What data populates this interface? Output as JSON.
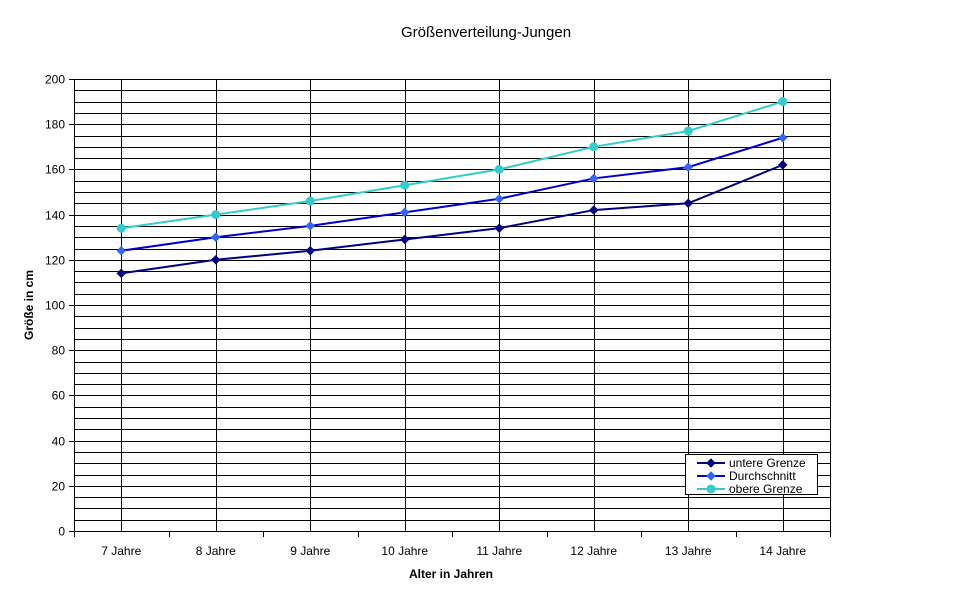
{
  "chart_data": {
    "type": "line",
    "title": "Größenverteilung-Jungen",
    "xlabel": "Alter in Jahren",
    "ylabel": "Größe in cm",
    "categories": [
      "7 Jahre",
      "8 Jahre",
      "9 Jahre",
      "10 Jahre",
      "11 Jahre",
      "12 Jahre",
      "13 Jahre",
      "14 Jahre"
    ],
    "ylim": [
      0,
      200
    ],
    "y_major_step": 20,
    "y_minor_step": 5,
    "y_ticks": [
      "0",
      "20",
      "40",
      "60",
      "80",
      "100",
      "120",
      "140",
      "160",
      "180",
      "200"
    ],
    "grid": true,
    "legend_position": "bottom-right",
    "series": [
      {
        "name": "untere Grenze",
        "values": [
          114,
          120,
          124,
          129,
          134,
          142,
          145,
          162
        ],
        "color": "#000080",
        "marker": "diamond"
      },
      {
        "name": "Durchschnitt",
        "values": [
          124,
          130,
          135,
          141,
          147,
          156,
          161,
          174
        ],
        "color": "#0000cc",
        "marker_color": "#3366ff",
        "marker": "diamond"
      },
      {
        "name": "obere Grenze",
        "values": [
          134,
          140,
          146,
          153,
          160,
          170,
          177,
          190
        ],
        "color": "#33cccc",
        "marker": "circle"
      }
    ]
  }
}
